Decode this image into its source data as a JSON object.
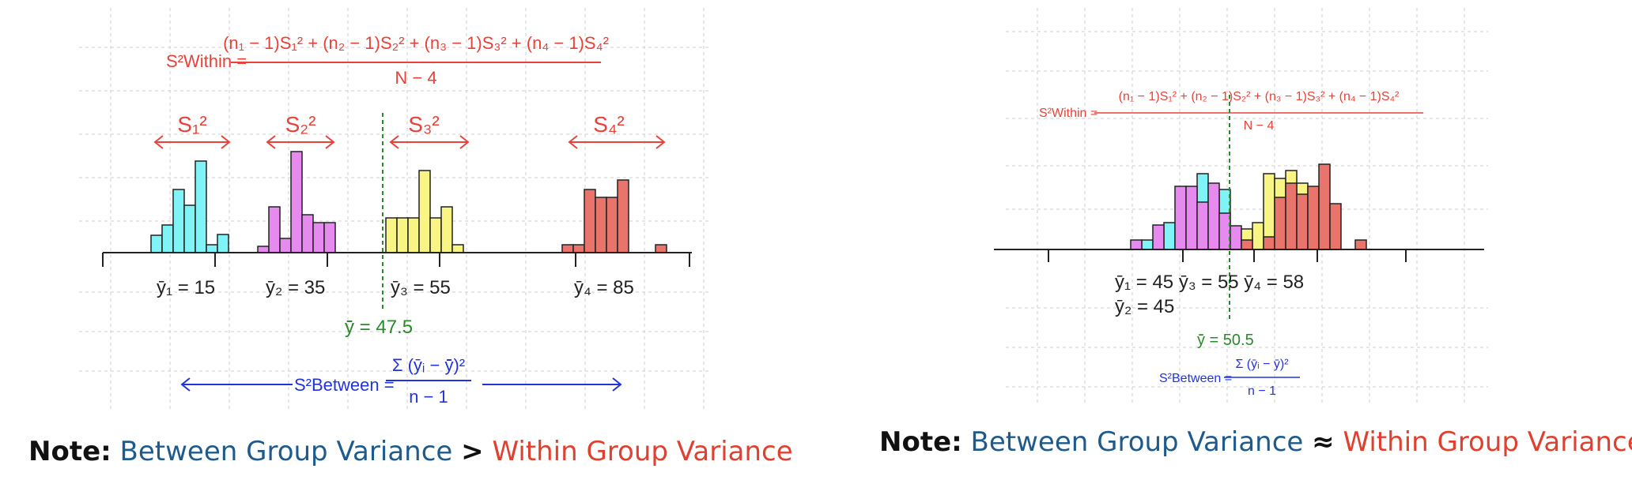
{
  "colors": {
    "red": "#e8423a",
    "blue": "#2233dd",
    "green": "#2b8a2b",
    "cyan": "#7ff3f5",
    "magenta": "#e78af0",
    "yellow": "#f8f584",
    "salmon": "#e8746c",
    "note_blue": "#1f5a8c",
    "note_red": "#e04030"
  },
  "left": {
    "within_lhs": "S²Within =",
    "within_num": "(n₁ − 1)S₁² + (n₂ − 1)S₂² + (n₃ − 1)S₃² + (n₄ − 1)S₄²",
    "within_den": "N − 4",
    "group_var_labels": [
      "S₁²",
      "S₂²",
      "S₃²",
      "S₄²"
    ],
    "group_mean_labels": [
      "ȳ₁ = 15",
      "ȳ₂ = 35",
      "ȳ₃ = 55",
      "ȳ₄ = 85"
    ],
    "grand_mean_label": "ȳ̄ = 47.5",
    "between_lhs": "S²Between =",
    "between_num": "Σ (ȳᵢ − ȳ̄)²",
    "between_den": "n − 1",
    "note_prefix": "Note:",
    "note_between": "Between Group Variance",
    "note_op": ">",
    "note_within": "Within Group Variance"
  },
  "right": {
    "within_lhs": "S²Within =",
    "within_num": "(n₁ − 1)S₁² + (n₂ − 1)S₂² + (n₃ − 1)S₃² + (n₄ − 1)S₄²",
    "within_den": "N − 4",
    "group_mean_line1": "ȳ₁ = 45  ȳ₃ = 55  ȳ₄ = 58",
    "group_mean_line2": "ȳ₂ = 45",
    "grand_mean_label": "ȳ̄ = 50.5",
    "between_lhs": "S²Between =",
    "between_num": "Σ (ȳᵢ − ȳ̄)²",
    "between_den": "n − 1",
    "note_prefix": "Note:",
    "note_between": "Between Group Variance",
    "note_op": "≈",
    "note_within": "Within Group Variance"
  }
}
